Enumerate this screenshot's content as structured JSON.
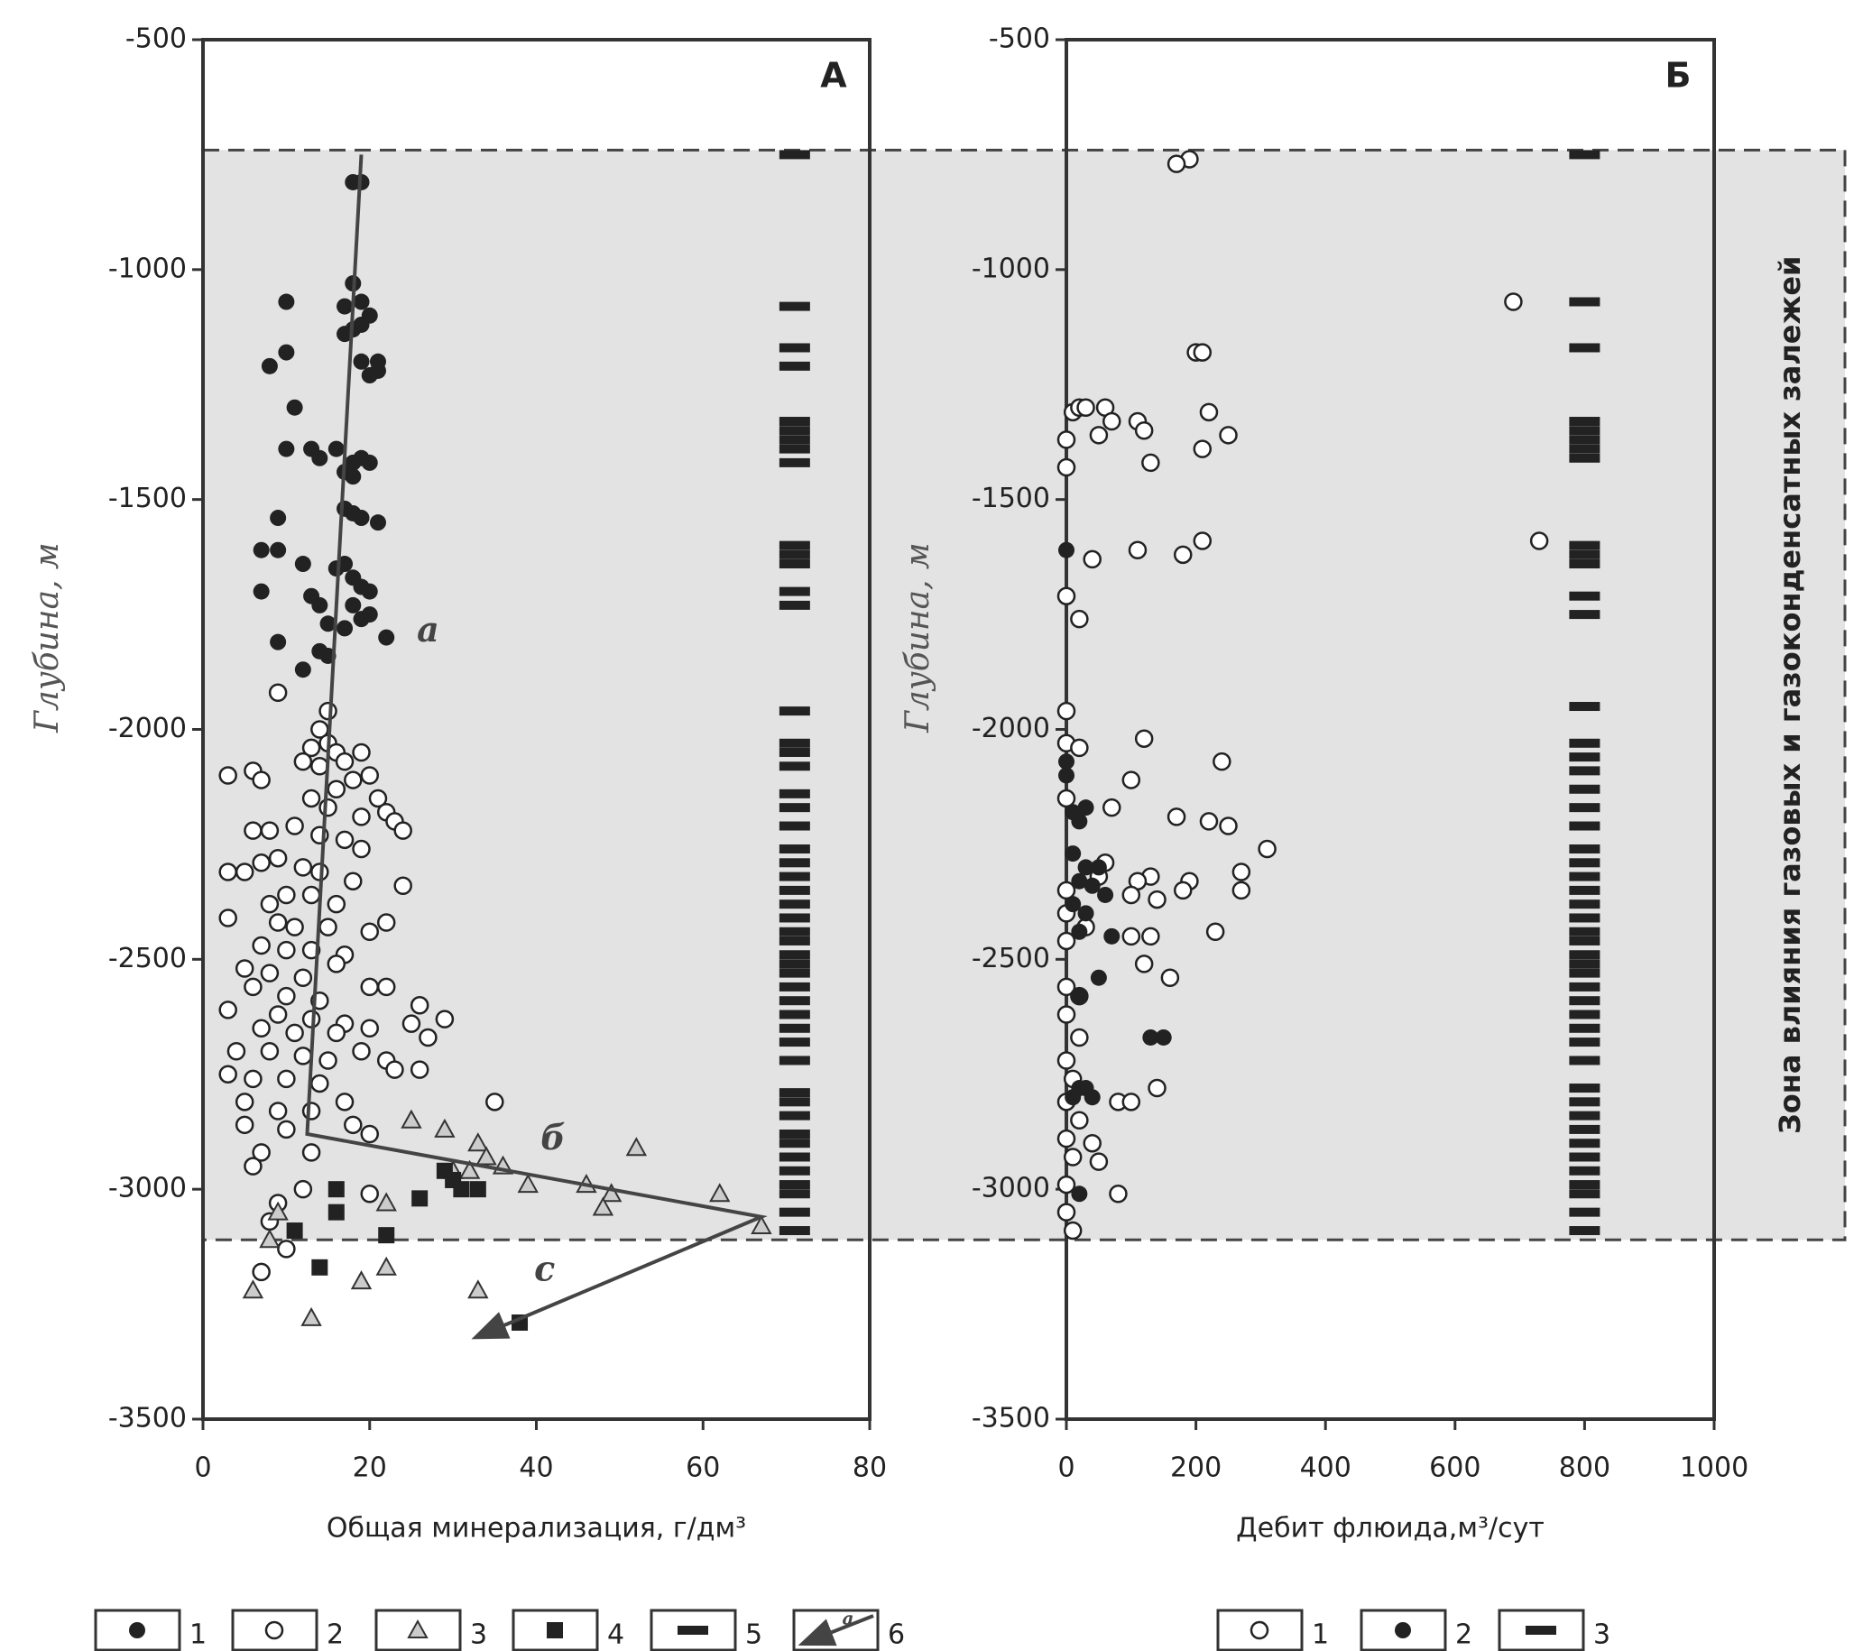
{
  "chart_data": [
    {
      "type": "scatter",
      "panel": "А",
      "xlabel": "Общая минерализация,  г/дм³",
      "ylabel": "Глубина, м",
      "xlim": [
        0,
        80
      ],
      "ylim": [
        -500,
        -3500
      ],
      "xticks": [
        0,
        20,
        40,
        60,
        80
      ],
      "yticks": [
        -500,
        -1000,
        -1500,
        -2000,
        -2500,
        -3000,
        -3500
      ],
      "zone": {
        "label": "Зона влияния газовых и газоконденсатных залежей",
        "top": -740,
        "bottom": -3110
      },
      "annotations": [
        {
          "text": "а",
          "x": 27,
          "y": -1790
        },
        {
          "text": "б",
          "x": 42,
          "y": -2895
        },
        {
          "text": "с",
          "x": 41,
          "y": -3180
        }
      ],
      "series": [
        {
          "name": "1",
          "marker": "filled-circle",
          "x": [
            18,
            19,
            18,
            17,
            19,
            20,
            18,
            17,
            19,
            10,
            8,
            10,
            11,
            19,
            20,
            21,
            21,
            10,
            13,
            14,
            16,
            17,
            18,
            19,
            20,
            18,
            17,
            18,
            19,
            21,
            9,
            7,
            9,
            12,
            16,
            17,
            18,
            19,
            20,
            7,
            13,
            14,
            18,
            19,
            20,
            15,
            17,
            22,
            14,
            9,
            15,
            12
          ],
          "y": [
            -810,
            -810,
            -1030,
            -1080,
            -1070,
            -1100,
            -1130,
            -1140,
            -1120,
            -1070,
            -1210,
            -1180,
            -1300,
            -1200,
            -1230,
            -1200,
            -1220,
            -1390,
            -1390,
            -1410,
            -1390,
            -1440,
            -1420,
            -1410,
            -1420,
            -1450,
            -1520,
            -1530,
            -1540,
            -1550,
            -1540,
            -1610,
            -1610,
            -1640,
            -1650,
            -1640,
            -1670,
            -1690,
            -1700,
            -1700,
            -1710,
            -1730,
            -1730,
            -1760,
            -1750,
            -1770,
            -1780,
            -1800,
            -1830,
            -1810,
            -1840,
            -1870
          ]
        },
        {
          "name": "2",
          "marker": "open-circle",
          "x": [
            9,
            15,
            14,
            15,
            13,
            16,
            17,
            19,
            14,
            12,
            6,
            3,
            7,
            18,
            20,
            16,
            13,
            21,
            15,
            19,
            22,
            23,
            24,
            6,
            8,
            11,
            14,
            17,
            19,
            3,
            5,
            7,
            9,
            12,
            14,
            18,
            24,
            8,
            10,
            13,
            16,
            3,
            9,
            11,
            15,
            20,
            22,
            7,
            10,
            13,
            17,
            5,
            8,
            12,
            16,
            6,
            10,
            14,
            20,
            22,
            26,
            3,
            9,
            13,
            17,
            25,
            29,
            7,
            11,
            16,
            20,
            27,
            4,
            8,
            12,
            15,
            19,
            22,
            3,
            6,
            10,
            14,
            23,
            26,
            5,
            9,
            13,
            17,
            35,
            5,
            10,
            18,
            20,
            7,
            13,
            6,
            9,
            20,
            12,
            8,
            10,
            7
          ],
          "y": [
            -1920,
            -1960,
            -2000,
            -2030,
            -2040,
            -2050,
            -2070,
            -2050,
            -2080,
            -2070,
            -2090,
            -2100,
            -2110,
            -2110,
            -2100,
            -2130,
            -2150,
            -2150,
            -2170,
            -2190,
            -2180,
            -2200,
            -2220,
            -2220,
            -2220,
            -2210,
            -2230,
            -2240,
            -2260,
            -2310,
            -2310,
            -2290,
            -2280,
            -2300,
            -2310,
            -2330,
            -2340,
            -2380,
            -2360,
            -2360,
            -2380,
            -2410,
            -2420,
            -2430,
            -2430,
            -2440,
            -2420,
            -2470,
            -2480,
            -2480,
            -2490,
            -2520,
            -2530,
            -2540,
            -2510,
            -2560,
            -2580,
            -2590,
            -2560,
            -2560,
            -2600,
            -2610,
            -2620,
            -2630,
            -2640,
            -2640,
            -2630,
            -2650,
            -2660,
            -2660,
            -2650,
            -2670,
            -2700,
            -2700,
            -2710,
            -2720,
            -2700,
            -2720,
            -2750,
            -2760,
            -2760,
            -2770,
            -2740,
            -2740,
            -2810,
            -2830,
            -2830,
            -2810,
            -2810,
            -2860,
            -2870,
            -2860,
            -2880,
            -2920,
            -2920,
            -2950,
            -3030,
            -3010,
            -3000,
            -3070,
            -3130,
            -3180
          ]
        },
        {
          "name": "3",
          "marker": "triangle",
          "x": [
            25,
            29,
            33,
            34,
            36,
            30,
            32,
            52,
            39,
            46,
            49,
            62,
            67,
            48,
            22,
            9,
            8,
            6,
            19,
            22,
            33,
            13
          ],
          "y": [
            -2850,
            -2870,
            -2900,
            -2930,
            -2950,
            -2960,
            -2960,
            -2910,
            -2990,
            -2990,
            -3010,
            -3010,
            -3080,
            -3040,
            -3030,
            -3050,
            -3110,
            -3220,
            -3200,
            -3170,
            -3220,
            -3280
          ]
        },
        {
          "name": "4",
          "marker": "square",
          "x": [
            29,
            30,
            31,
            33,
            16,
            26,
            16,
            22,
            11,
            14,
            38
          ],
          "y": [
            -2960,
            -2980,
            -3000,
            -3000,
            -3000,
            -3020,
            -3050,
            -3100,
            -3090,
            -3170,
            -3290
          ]
        },
        {
          "name": "5",
          "marker": "dash",
          "x": [
            71,
            71,
            71,
            71,
            71,
            71,
            71,
            71,
            71,
            71,
            71,
            71,
            71,
            71,
            71,
            71,
            71,
            71,
            71,
            71,
            71,
            71,
            71,
            71,
            71,
            71,
            71,
            71,
            71,
            71,
            71,
            71,
            71,
            71,
            71,
            71,
            71,
            71,
            71,
            71,
            71,
            71,
            71,
            71,
            71,
            71,
            71,
            71,
            71
          ],
          "y": [
            -750,
            -1080,
            -1170,
            -1210,
            -1330,
            -1350,
            -1370,
            -1390,
            -1420,
            -1600,
            -1620,
            -1640,
            -1700,
            -1730,
            -1960,
            -2030,
            -2050,
            -2080,
            -2140,
            -2170,
            -2210,
            -2260,
            -2290,
            -2320,
            -2350,
            -2380,
            -2410,
            -2440,
            -2460,
            -2490,
            -2510,
            -2530,
            -2560,
            -2590,
            -2620,
            -2650,
            -2680,
            -2720,
            -2790,
            -2810,
            -2840,
            -2880,
            -2900,
            -2930,
            -2960,
            -2990,
            -3010,
            -3050,
            -3090
          ]
        },
        {
          "name": "6",
          "marker": "arrow-line",
          "legend_symbol_label": "а",
          "x": [
            19,
            12.5,
            67,
            33
          ],
          "y": [
            -750,
            -2880,
            -3060,
            -3320
          ]
        }
      ]
    },
    {
      "type": "scatter",
      "panel": "Б",
      "xlabel": "Дебит флюида,м³/сут",
      "ylabel": "Глубина, м",
      "xlim": [
        0,
        1000
      ],
      "ylim": [
        -500,
        -3500
      ],
      "xticks": [
        0,
        200,
        400,
        600,
        800,
        1000
      ],
      "yticks": [
        -500,
        -1000,
        -1500,
        -2000,
        -2500,
        -3000,
        -3500
      ],
      "series": [
        {
          "name": "1",
          "marker": "open-circle",
          "x": [
            190,
            170,
            690,
            200,
            210,
            730,
            10,
            20,
            30,
            60,
            70,
            110,
            120,
            220,
            250,
            210,
            130,
            0,
            0,
            50,
            110,
            180,
            210,
            40,
            0,
            20,
            0,
            0,
            20,
            120,
            240,
            100,
            0,
            70,
            170,
            220,
            250,
            310,
            270,
            270,
            190,
            180,
            130,
            110,
            140,
            100,
            60,
            50,
            0,
            0,
            0,
            30,
            100,
            130,
            230,
            120,
            160,
            0,
            20,
            0,
            20,
            0,
            10,
            140,
            80,
            100,
            0,
            20,
            0,
            40,
            50,
            10,
            0,
            80,
            0,
            10
          ],
          "y": [
            -760,
            -770,
            -1070,
            -1180,
            -1180,
            -1590,
            -1310,
            -1300,
            -1300,
            -1300,
            -1330,
            -1330,
            -1350,
            -1310,
            -1360,
            -1390,
            -1420,
            -1370,
            -1430,
            -1360,
            -1610,
            -1620,
            -1590,
            -1630,
            -1710,
            -1760,
            -1960,
            -2030,
            -2040,
            -2020,
            -2070,
            -2110,
            -2150,
            -2170,
            -2190,
            -2200,
            -2210,
            -2260,
            -2310,
            -2350,
            -2330,
            -2350,
            -2320,
            -2330,
            -2370,
            -2360,
            -2290,
            -2320,
            -2350,
            -2400,
            -2460,
            -2430,
            -2450,
            -2450,
            -2440,
            -2510,
            -2540,
            -2560,
            -2580,
            -2620,
            -2670,
            -2720,
            -2760,
            -2780,
            -2810,
            -2810,
            -2810,
            -2850,
            -2890,
            -2900,
            -2940,
            -2930,
            -2990,
            -3010,
            -3050,
            -3090
          ]
        },
        {
          "name": "2",
          "marker": "filled-circle",
          "x": [
            0,
            0,
            0,
            10,
            30,
            20,
            10,
            30,
            50,
            20,
            40,
            60,
            10,
            30,
            20,
            70,
            50,
            20,
            130,
            150,
            30,
            10,
            20,
            40,
            20
          ],
          "y": [
            -1610,
            -2070,
            -2100,
            -2180,
            -2170,
            -2200,
            -2270,
            -2300,
            -2300,
            -2330,
            -2340,
            -2360,
            -2380,
            -2400,
            -2440,
            -2450,
            -2540,
            -2580,
            -2670,
            -2670,
            -2780,
            -2800,
            -2780,
            -2800,
            -3010
          ]
        },
        {
          "name": "3",
          "marker": "dash",
          "x": [
            800,
            800,
            800,
            800,
            800,
            800,
            800,
            800,
            800,
            800,
            800,
            800,
            800,
            800,
            800,
            800,
            800,
            800,
            800,
            800,
            800,
            800,
            800,
            800,
            800,
            800,
            800,
            800,
            800,
            800,
            800,
            800,
            800,
            800,
            800,
            800,
            800,
            800,
            800,
            800,
            800,
            800,
            800,
            800,
            800,
            800,
            800,
            800
          ],
          "y": [
            -750,
            -1070,
            -1170,
            -1330,
            -1350,
            -1370,
            -1390,
            -1410,
            -1600,
            -1620,
            -1640,
            -1710,
            -1750,
            -1950,
            -2030,
            -2060,
            -2090,
            -2130,
            -2170,
            -2210,
            -2260,
            -2290,
            -2320,
            -2350,
            -2380,
            -2410,
            -2440,
            -2460,
            -2490,
            -2510,
            -2530,
            -2560,
            -2590,
            -2620,
            -2650,
            -2680,
            -2720,
            -2780,
            -2810,
            -2840,
            -2870,
            -2900,
            -2930,
            -2960,
            -2990,
            -3010,
            -3050,
            -3090
          ]
        }
      ]
    }
  ]
}
